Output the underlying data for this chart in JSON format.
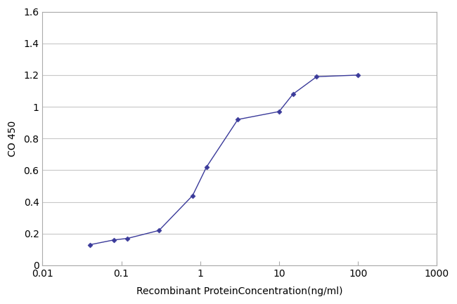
{
  "x": [
    0.04,
    0.08,
    0.12,
    0.3,
    0.8,
    1.2,
    3,
    10,
    15,
    30,
    100
  ],
  "y": [
    0.13,
    0.16,
    0.17,
    0.22,
    0.44,
    0.62,
    0.92,
    0.97,
    1.08,
    1.19,
    1.2
  ],
  "line_color": "#3a3a9a",
  "marker": "D",
  "marker_size": 3.5,
  "title": "",
  "xlabel": "Recombinant ProteinConcentration(ng/ml)",
  "ylabel": "CO 450",
  "xlim": [
    0.01,
    1000
  ],
  "ylim": [
    0,
    1.6
  ],
  "yticks": [
    0,
    0.2,
    0.4,
    0.6,
    0.8,
    1.0,
    1.2,
    1.4,
    1.6
  ],
  "ytick_labels": [
    "0",
    "0.2",
    "0.4",
    "0.6",
    "0.8",
    "1",
    "1.2",
    "1.4",
    "1.6"
  ],
  "xtick_labels": [
    "0.01",
    "0.1",
    "1",
    "10",
    "100",
    "1000"
  ],
  "xtick_vals": [
    0.01,
    0.1,
    1,
    10,
    100,
    1000
  ],
  "grid_color": "#c8c8c8",
  "plot_bg_color": "#ffffff",
  "fig_bg_color": "#ffffff",
  "xlabel_fontsize": 10,
  "ylabel_fontsize": 10,
  "tick_fontsize": 10,
  "spine_color": "#aaaaaa"
}
